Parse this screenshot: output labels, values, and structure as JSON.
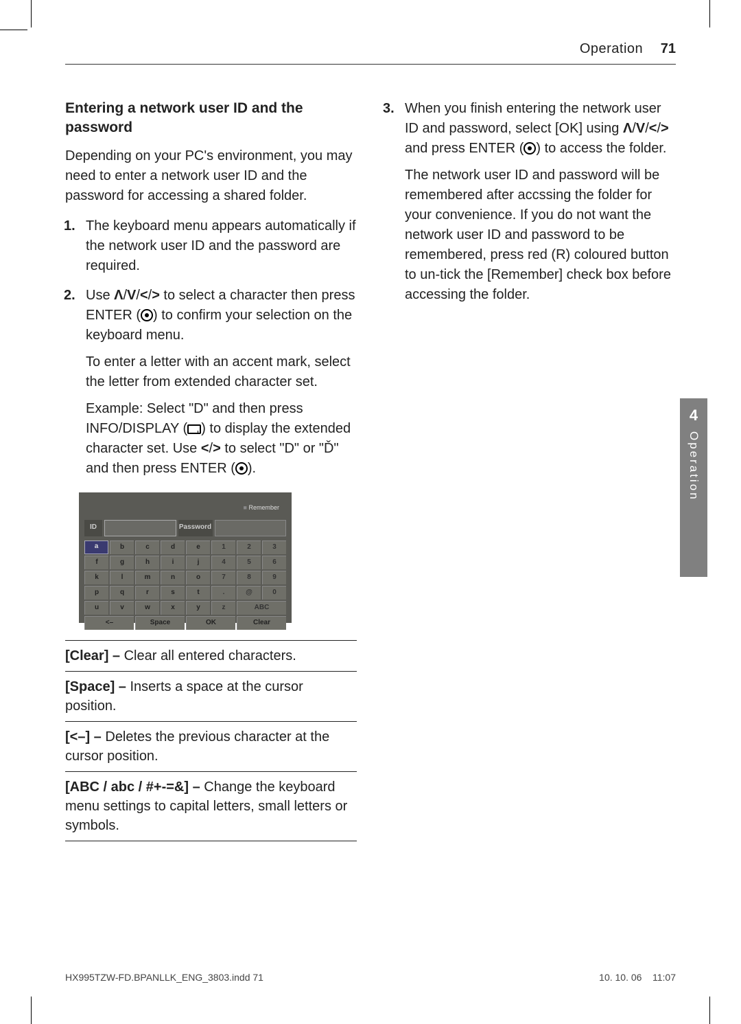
{
  "header": {
    "section": "Operation",
    "page_num": "71"
  },
  "left": {
    "subsection": "Entering a network user ID and the password",
    "intro": "Depending on your PC's environment, you may need to enter a network user ID and the password for accessing a shared folder.",
    "steps": [
      {
        "num": "1.",
        "paragraphs": [
          "The keyboard menu appears automatically if the network user ID and the password are required."
        ]
      },
      {
        "num": "2.",
        "paragraphs": [
          "Use Λ/V/</> to select a character then press ENTER (icon-dot) to confirm your selection on the keyboard menu.",
          "To enter a letter with an accent mark, select the letter from extended character set.",
          "Example: Select \"D\" and then press INFO/DISPLAY (icon-screen) to display the extended character set. Use </> to select \"D\" or \"Ď\" and then press ENTER (icon-dot)."
        ]
      }
    ],
    "commands": [
      {
        "label": "[Clear] –",
        "desc": " Clear all entered characters."
      },
      {
        "label": "[Space] –",
        "desc": " Inserts a space at the cursor position."
      },
      {
        "label": "[<–] –",
        "desc": " Deletes the previous character at the cursor position."
      },
      {
        "label": "[ABC / abc / #+-=&] –",
        "desc": " Change the keyboard menu settings to capital letters, small letters or symbols."
      }
    ]
  },
  "right": {
    "steps": [
      {
        "num": "3.",
        "paragraphs": [
          "When you finish entering the network user ID and password, select [OK] using Λ/V/</> and press ENTER (icon-dot) to access the folder.",
          "The network user ID and password will be remembered after accssing the folder for your convenience. If you do not want the network user ID and password to be remembered, press red (R) coloured button to un-tick the [Remember] check box before accessing the folder."
        ]
      }
    ]
  },
  "keyboard": {
    "remember": "Remember",
    "id_label": "ID",
    "pw_label": "Password",
    "rows": [
      [
        "a",
        "b",
        "c",
        "d",
        "e",
        "1",
        "2",
        "3"
      ],
      [
        "f",
        "g",
        "h",
        "i",
        "j",
        "4",
        "5",
        "6"
      ],
      [
        "k",
        "l",
        "m",
        "n",
        "o",
        "7",
        "8",
        "9"
      ],
      [
        "p",
        "q",
        "r",
        "s",
        "t",
        ".",
        "@",
        "0"
      ],
      [
        "u",
        "v",
        "w",
        "x",
        "y",
        "z",
        "ABC",
        "ABC"
      ]
    ],
    "bottom": [
      "<–",
      "Space",
      "OK",
      "Clear"
    ],
    "selected_key": "a"
  },
  "side_tab": {
    "num": "4",
    "label": "Operation"
  },
  "footer": {
    "left": "HX995TZW-FD.BPANLLK_ENG_3803.indd   71",
    "right_date": "10. 10. 06",
    "right_time": "11:07"
  }
}
